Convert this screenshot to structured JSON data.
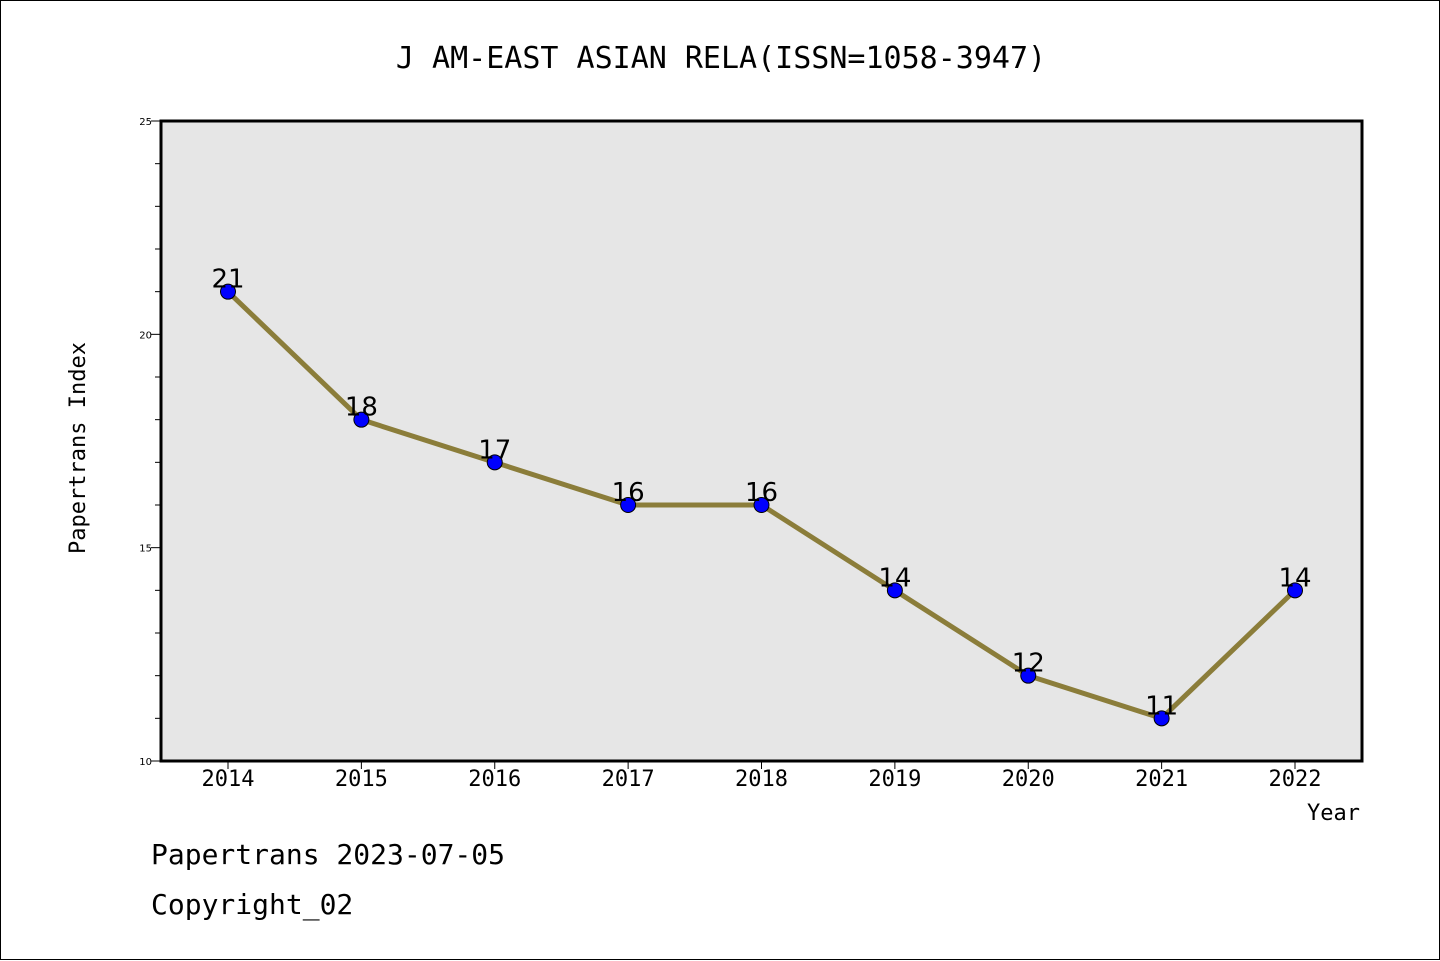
{
  "chart_data": {
    "type": "line",
    "title": "J AM-EAST ASIAN RELA(ISSN=1058-3947)",
    "xlabel": "Year",
    "ylabel": "Papertrans Index",
    "categories": [
      "2014",
      "2015",
      "2016",
      "2017",
      "2018",
      "2019",
      "2020",
      "2021",
      "2022"
    ],
    "series": [
      {
        "values": [
          21,
          18,
          17,
          16,
          16,
          14,
          12,
          11,
          14
        ]
      }
    ],
    "ylim": [
      10,
      25
    ],
    "yticks": [
      10,
      15,
      20,
      25
    ],
    "grid": false,
    "data_labels": true,
    "colors": {
      "line": "#8b7d3a",
      "marker": "#0000ff",
      "plot_background": "#e6e6e6",
      "page_background": "#ffffff"
    }
  },
  "footer": {
    "line1": "Papertrans 2023-07-05",
    "line2": "Copyright_02"
  }
}
